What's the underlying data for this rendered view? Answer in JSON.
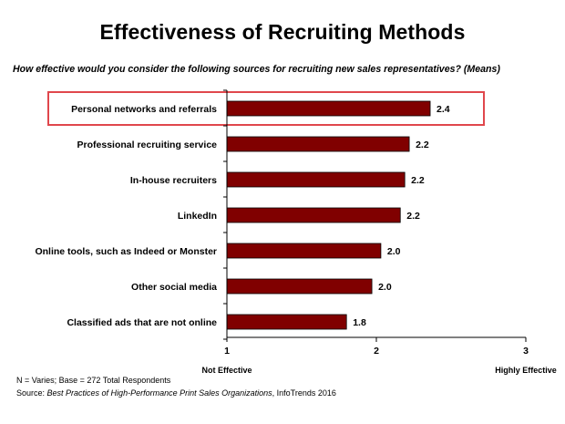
{
  "chart_data": {
    "type": "bar",
    "orientation": "horizontal",
    "title": "Effectiveness of Recruiting Methods",
    "subtitle": "How effective would you consider the following sources for recruiting new sales representatives? (Means)",
    "categories": [
      "Personal networks and referrals",
      "Professional recruiting service",
      "In-house recruiters",
      "LinkedIn",
      "Online tools, such as Indeed or Monster",
      "Other social media",
      "Classified ads that are not online"
    ],
    "values": [
      2.36,
      2.22,
      2.19,
      2.16,
      2.03,
      1.97,
      1.8
    ],
    "value_labels": [
      "2.4",
      "2.2",
      "2.2",
      "2.2",
      "2.0",
      "2.0",
      "1.8"
    ],
    "highlighted_category": "Personal networks and referrals",
    "xlim": [
      1,
      3
    ],
    "xticks": [
      "1",
      "2",
      "3"
    ],
    "x_axis_end_labels": [
      "Not Effective",
      "Highly Effective"
    ],
    "grid": false,
    "bar_color": "#800000",
    "highlight_color": "#e0474c"
  },
  "footnotes": {
    "base": "N = Varies; Base = 272 Total Respondents",
    "source_prefix": "Source: ",
    "source_title": "Best Practices of High-Performance Print Sales Organizations",
    "source_suffix": ", InfoTrends 2016"
  }
}
